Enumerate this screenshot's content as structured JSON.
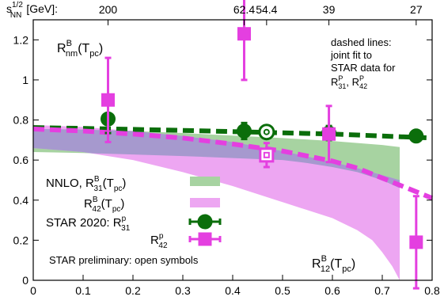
{
  "chart_data": {
    "type": "scatter",
    "x": {
      "lim": [
        0,
        0.8
      ],
      "ticks": [
        "0",
        "0.1",
        "0.2",
        "0.3",
        "0.4",
        "0.5",
        "0.6",
        "0.7",
        "0.8"
      ]
    },
    "y": {
      "lim": [
        0,
        1.3
      ],
      "ticks": [
        "0",
        "0.2",
        "0.4",
        "0.6",
        "0.8",
        "1",
        "1.2"
      ]
    },
    "top_axis": {
      "label_base": "s",
      "label_sup": "1/2",
      "label_sub": "NN",
      "label_unit": "[GeV]:",
      "ticks": [
        {
          "x": 0.15,
          "label": "200"
        },
        {
          "x": 0.423,
          "label": "62.4"
        },
        {
          "x": 0.468,
          "label": "54.4"
        },
        {
          "x": 0.593,
          "label": "39"
        },
        {
          "x": 0.768,
          "label": "27"
        }
      ]
    },
    "bands": [
      {
        "name_base": "R",
        "name_sup": "B",
        "name_sub": "31",
        "name_tail": "(T",
        "name_tail_sub": "pc",
        "name_close": ")",
        "legend_prefix": "NNLO, ",
        "color": "#a7d3a1",
        "upper": [
          [
            0,
            0.755
          ],
          [
            0.1,
            0.752
          ],
          [
            0.2,
            0.745
          ],
          [
            0.3,
            0.735
          ],
          [
            0.4,
            0.722
          ],
          [
            0.5,
            0.71
          ],
          [
            0.6,
            0.695
          ],
          [
            0.7,
            0.675
          ],
          [
            0.735,
            0.665
          ]
        ],
        "lower": [
          [
            0,
            0.64
          ],
          [
            0.1,
            0.635
          ],
          [
            0.2,
            0.628
          ],
          [
            0.3,
            0.62
          ],
          [
            0.4,
            0.61
          ],
          [
            0.5,
            0.6
          ],
          [
            0.55,
            0.585
          ],
          [
            0.6,
            0.565
          ],
          [
            0.65,
            0.54
          ],
          [
            0.7,
            0.5
          ],
          [
            0.735,
            0.46
          ]
        ]
      },
      {
        "name_base": "R",
        "name_sup": "B",
        "name_sub": "42",
        "name_tail": "(T",
        "name_tail_sub": "pc",
        "name_close": ")",
        "legend_prefix": "",
        "color": "#eda6f2",
        "upper": [
          [
            0,
            0.775
          ],
          [
            0.1,
            0.765
          ],
          [
            0.2,
            0.745
          ],
          [
            0.3,
            0.72
          ],
          [
            0.4,
            0.69
          ],
          [
            0.5,
            0.645
          ],
          [
            0.6,
            0.59
          ],
          [
            0.65,
            0.56
          ],
          [
            0.7,
            0.525
          ],
          [
            0.735,
            0.5
          ]
        ],
        "lower": [
          [
            0,
            0.66
          ],
          [
            0.1,
            0.64
          ],
          [
            0.2,
            0.6
          ],
          [
            0.3,
            0.54
          ],
          [
            0.4,
            0.47
          ],
          [
            0.5,
            0.39
          ],
          [
            0.55,
            0.35
          ],
          [
            0.6,
            0.31
          ],
          [
            0.65,
            0.25
          ],
          [
            0.68,
            0.2
          ],
          [
            0.7,
            0.14
          ],
          [
            0.72,
            0.07
          ],
          [
            0.735,
            0.0
          ]
        ]
      }
    ],
    "overlap_color": "#a699ce",
    "fit_lines": [
      {
        "color": "#0b6e0b",
        "points": [
          [
            0,
            0.762
          ],
          [
            0.1,
            0.758
          ],
          [
            0.2,
            0.753
          ],
          [
            0.3,
            0.748
          ],
          [
            0.4,
            0.742
          ],
          [
            0.5,
            0.736
          ],
          [
            0.6,
            0.73
          ],
          [
            0.7,
            0.72
          ],
          [
            0.8,
            0.71
          ]
        ]
      },
      {
        "color": "#e43fe0",
        "points": [
          [
            0,
            0.755
          ],
          [
            0.1,
            0.745
          ],
          [
            0.2,
            0.73
          ],
          [
            0.3,
            0.71
          ],
          [
            0.4,
            0.68
          ],
          [
            0.5,
            0.645
          ],
          [
            0.6,
            0.595
          ],
          [
            0.65,
            0.56
          ],
          [
            0.7,
            0.51
          ],
          [
            0.75,
            0.46
          ],
          [
            0.8,
            0.41
          ]
        ]
      }
    ],
    "series": [
      {
        "legend_prefix": "STAR 2020: ",
        "name_base": "R",
        "name_sup": "p",
        "name_sub": "31",
        "marker": "circle",
        "color": "#0b6e0b",
        "points": [
          {
            "x": 0.15,
            "y": 0.805,
            "err": 0.07,
            "open": false
          },
          {
            "x": 0.423,
            "y": 0.745,
            "err": 0.04,
            "open": false
          },
          {
            "x": 0.468,
            "y": 0.74,
            "err": 0.03,
            "open": true
          },
          {
            "x": 0.593,
            "y": 0.735,
            "err": 0.035,
            "open": false
          },
          {
            "x": 0.768,
            "y": 0.72,
            "err": 0.02,
            "open": false
          }
        ]
      },
      {
        "legend_prefix": "",
        "name_base": "R",
        "name_sup": "p",
        "name_sub": "42",
        "marker": "square",
        "color": "#e43fe0",
        "points": [
          {
            "x": 0.15,
            "y": 0.9,
            "err": 0.21,
            "open": false
          },
          {
            "x": 0.423,
            "y": 1.23,
            "err": 0.23,
            "open": false
          },
          {
            "x": 0.468,
            "y": 0.625,
            "err": 0.06,
            "open": true
          },
          {
            "x": 0.593,
            "y": 0.73,
            "err": 0.14,
            "open": false
          },
          {
            "x": 0.768,
            "y": 0.19,
            "err": 0.23,
            "open": false
          }
        ]
      }
    ],
    "annotations": {
      "rnm": {
        "base": "R",
        "sup": "B",
        "sub": "nm",
        "tail": "(T",
        "tail_sub": "pc",
        "close": ")"
      },
      "r12": {
        "base": "R",
        "sup": "B",
        "sub": "12",
        "tail": "(T",
        "tail_sub": "pc",
        "close": ")"
      },
      "dashed_note": [
        "dashed lines:",
        "joint fit to",
        "STAR data for"
      ],
      "dashed_note_last": {
        "a_base": "R",
        "a_sup": "P",
        "a_sub": "31",
        "sep": ", ",
        "b_base": "R",
        "b_sup": "P",
        "b_sub": "42"
      },
      "preliminary": "STAR preliminary: open symbols"
    }
  }
}
